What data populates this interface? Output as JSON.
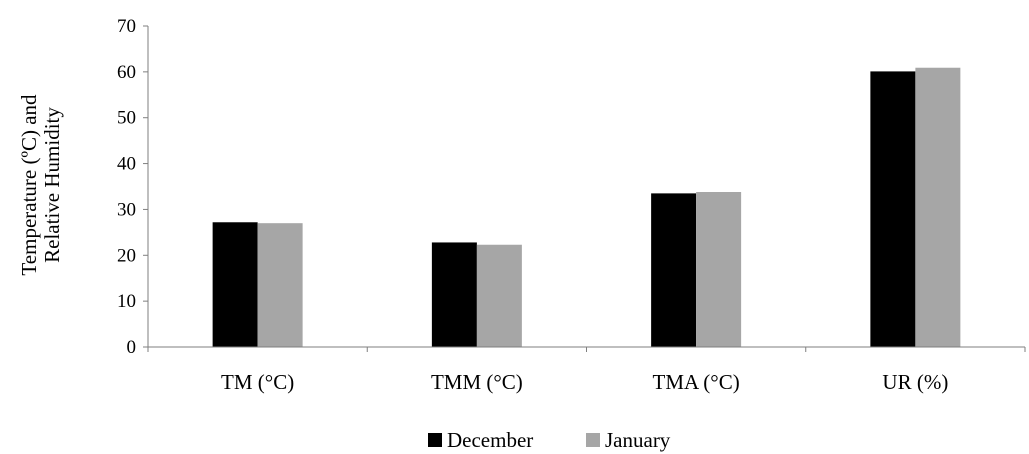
{
  "chart_data": {
    "type": "bar",
    "categories": [
      "TM (°C)",
      "TMM (°C)",
      "TMA (°C)",
      "UR (%)"
    ],
    "series": [
      {
        "name": "December",
        "values": [
          27.2,
          22.8,
          33.5,
          60.1
        ],
        "color": "#000000"
      },
      {
        "name": "January",
        "values": [
          27.0,
          22.3,
          33.8,
          60.9
        ],
        "color": "#a6a6a6"
      }
    ],
    "title": "",
    "xlabel": "",
    "ylabel_lines": [
      "Temperature (ºC) and",
      "Relative Humidity"
    ],
    "ylim": [
      0,
      70
    ],
    "yticks": [
      0,
      10,
      20,
      30,
      40,
      50,
      60,
      70
    ],
    "grid": false,
    "legend": "bottom"
  }
}
